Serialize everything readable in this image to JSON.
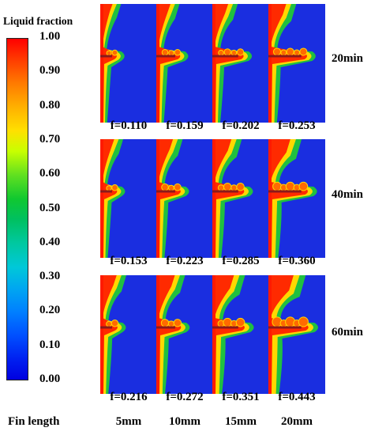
{
  "colorbar": {
    "title": "Liquid fraction",
    "ticks": [
      "1.00",
      "0.90",
      "0.80",
      "0.70",
      "0.60",
      "0.50",
      "0.40",
      "0.30",
      "0.20",
      "0.10",
      "0.00"
    ]
  },
  "rows": [
    {
      "time": "20min",
      "values": [
        "f=0.110",
        "f=0.159",
        "f=0.202",
        "f=0.253"
      ]
    },
    {
      "time": "40min",
      "values": [
        "f=0.153",
        "f=0.223",
        "f=0.285",
        "f=0.360"
      ]
    },
    {
      "time": "60min",
      "values": [
        "f=0.216",
        "f=0.272",
        "f=0.351",
        "f=0.443"
      ]
    }
  ],
  "footer": {
    "label": "Fin length",
    "fins": [
      "5mm",
      "10mm",
      "15mm",
      "20mm"
    ]
  },
  "fin_lengths_mm": [
    5,
    10,
    15,
    20
  ],
  "liquid_fraction_by_time": {
    "20min": [
      0.11,
      0.159,
      0.202,
      0.253
    ],
    "40min": [
      0.153,
      0.223,
      0.285,
      0.36
    ],
    "60min": [
      0.216,
      0.272,
      0.351,
      0.443
    ]
  },
  "colors": {
    "solid": "#1a2ee0",
    "liquid": "#ff1a00",
    "fin": "#8b1a1a"
  }
}
